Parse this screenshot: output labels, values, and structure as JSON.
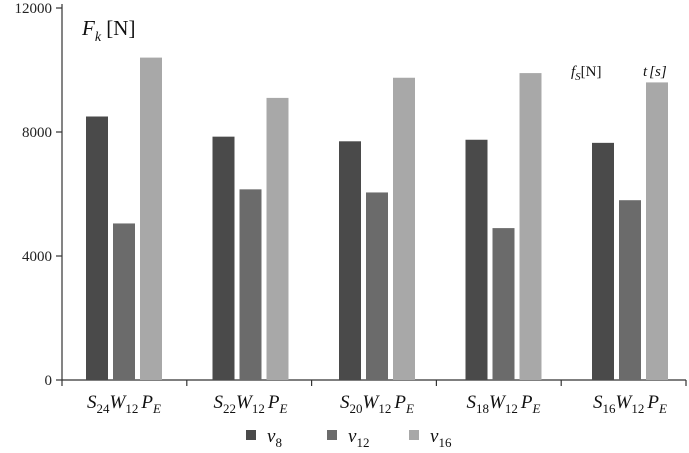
{
  "chart_data": {
    "type": "bar",
    "title": "",
    "ylabel": {
      "main": "F",
      "sub": "k",
      "unit": "[N]"
    },
    "annotations": [
      {
        "main": "f",
        "sub": "S",
        "unit": "[N]"
      },
      {
        "main": "t",
        "unit": "[s]"
      }
    ],
    "ylim": [
      0,
      12000
    ],
    "yticks": [
      "0",
      "4000",
      "8000",
      "12000"
    ],
    "categories": [
      {
        "s": "S",
        "s_sub": "24",
        "w": "W",
        "w_sub": "12",
        "p": "P",
        "p_sub": "E"
      },
      {
        "s": "S",
        "s_sub": "22",
        "w": "W",
        "w_sub": "12",
        "p": "P",
        "p_sub": "E"
      },
      {
        "s": "S",
        "s_sub": "20",
        "w": "W",
        "w_sub": "12",
        "p": "P",
        "p_sub": "E"
      },
      {
        "s": "S",
        "s_sub": "18",
        "w": "W",
        "w_sub": "12",
        "p": "P",
        "p_sub": "E"
      },
      {
        "s": "S",
        "s_sub": "16",
        "w": "W",
        "w_sub": "12",
        "p": "P",
        "p_sub": "E"
      }
    ],
    "series": [
      {
        "name": "v",
        "sub": "8",
        "color": "#4a4a4a",
        "values": [
          8500,
          7850,
          7700,
          7750,
          7650
        ]
      },
      {
        "name": "v",
        "sub": "12",
        "color": "#6b6b6b",
        "values": [
          5050,
          6150,
          6050,
          4900,
          5800
        ]
      },
      {
        "name": "v",
        "sub": "16",
        "color": "#a8a8a8",
        "values": [
          10400,
          9100,
          9750,
          9900,
          9600
        ]
      }
    ],
    "legend_position": "bottom",
    "grid": false
  }
}
